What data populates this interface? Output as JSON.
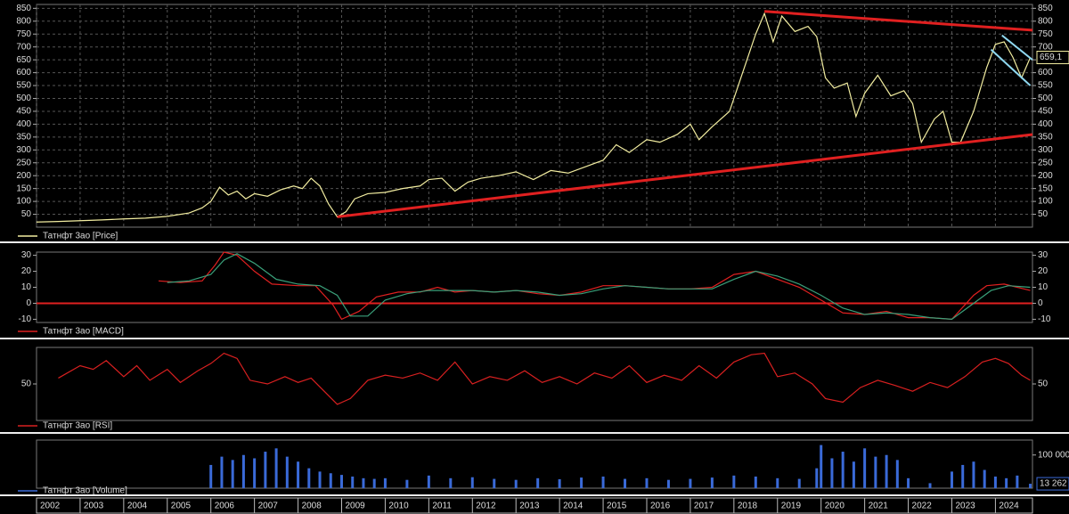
{
  "chart_data": [
    {
      "type": "line",
      "xlim": [
        2002,
        2024.85
      ],
      "ylim": [
        0,
        865
      ],
      "yticks": [
        50,
        100,
        150,
        200,
        250,
        300,
        350,
        400,
        450,
        500,
        550,
        600,
        650,
        700,
        750,
        800,
        850
      ],
      "series": [
        {
          "name": "Татнфт 3ао [Price]",
          "color": "#f2eda0",
          "x": [
            2002.0,
            2002.5,
            2003.0,
            2003.5,
            2004.0,
            2004.5,
            2005.0,
            2005.5,
            2005.8,
            2006.0,
            2006.2,
            2006.4,
            2006.6,
            2006.8,
            2007.0,
            2007.3,
            2007.6,
            2007.9,
            2008.1,
            2008.3,
            2008.5,
            2008.7,
            2008.9,
            2009.1,
            2009.3,
            2009.6,
            2010.0,
            2010.4,
            2010.8,
            2011.0,
            2011.3,
            2011.6,
            2011.9,
            2012.2,
            2012.6,
            2013.0,
            2013.4,
            2013.8,
            2014.2,
            2014.6,
            2015.0,
            2015.3,
            2015.6,
            2016.0,
            2016.3,
            2016.7,
            2017.0,
            2017.2,
            2017.5,
            2017.9,
            2018.2,
            2018.5,
            2018.7,
            2018.9,
            2019.1,
            2019.4,
            2019.7,
            2019.9,
            2020.1,
            2020.3,
            2020.6,
            2020.8,
            2021.0,
            2021.3,
            2021.6,
            2021.9,
            2022.1,
            2022.3,
            2022.6,
            2022.8,
            2023.0,
            2023.2,
            2023.5,
            2023.8,
            2024.0,
            2024.2,
            2024.4,
            2024.6,
            2024.8
          ],
          "values": [
            20,
            22,
            25,
            28,
            32,
            35,
            42,
            55,
            75,
            100,
            155,
            125,
            140,
            110,
            130,
            120,
            145,
            160,
            150,
            190,
            160,
            90,
            40,
            60,
            110,
            130,
            135,
            150,
            160,
            185,
            190,
            140,
            175,
            190,
            200,
            215,
            185,
            220,
            210,
            235,
            260,
            320,
            290,
            340,
            330,
            360,
            400,
            340,
            390,
            450,
            600,
            750,
            830,
            720,
            820,
            760,
            780,
            740,
            580,
            540,
            560,
            430,
            520,
            590,
            510,
            530,
            480,
            330,
            420,
            450,
            330,
            330,
            450,
            620,
            710,
            720,
            660,
            580,
            659.1
          ]
        }
      ],
      "last_value": {
        "x": 2024.8,
        "value": 659.1,
        "label": "659,1"
      },
      "lines": [
        {
          "color": "#e02020",
          "x": [
            2008.9,
            2024.85
          ],
          "y": [
            40,
            360
          ]
        },
        {
          "color": "#e02020",
          "x": [
            2018.7,
            2024.85
          ],
          "y": [
            838,
            765
          ]
        },
        {
          "color": "#8fd8f0",
          "x": [
            2024.15,
            2024.85
          ],
          "y": [
            745,
            650
          ]
        },
        {
          "color": "#8fd8f0",
          "x": [
            2023.9,
            2024.8
          ],
          "y": [
            690,
            550
          ]
        }
      ]
    },
    {
      "type": "line",
      "xlim": [
        2002,
        2024.85
      ],
      "ylim": [
        -12,
        32
      ],
      "yticks": [
        -10,
        0,
        10,
        20,
        30
      ],
      "zero_line_color": "#e02020",
      "series": [
        {
          "name": "Татнфт 3ао [MACD]",
          "color": "#e02020",
          "x": [
            2004.8,
            2005.3,
            2005.8,
            2006.1,
            2006.3,
            2006.6,
            2007.0,
            2007.4,
            2008.0,
            2008.4,
            2008.8,
            2009.0,
            2009.4,
            2009.8,
            2010.3,
            2010.8,
            2011.2,
            2011.6,
            2012.0,
            2012.5,
            2013.0,
            2013.5,
            2014.0,
            2014.5,
            2015.0,
            2015.5,
            2016.0,
            2016.5,
            2017.0,
            2017.5,
            2018.0,
            2018.5,
            2019.0,
            2019.5,
            2020.0,
            2020.5,
            2021.0,
            2021.5,
            2022.0,
            2022.5,
            2023.0,
            2023.5,
            2023.8,
            2024.2,
            2024.5,
            2024.8
          ],
          "values": [
            14,
            13,
            14,
            24,
            32,
            30,
            20,
            12,
            11,
            11,
            -1,
            -10,
            -5,
            4,
            7,
            7,
            10,
            7,
            8,
            7,
            8,
            6,
            5,
            7,
            11,
            11,
            10,
            9,
            9,
            10,
            18,
            20,
            15,
            10,
            2,
            -6,
            -7,
            -5,
            -9,
            -9,
            -10,
            5,
            11,
            12,
            10,
            8
          ]
        },
        {
          "name": null,
          "color": "#3aa07a",
          "x": [
            2005.0,
            2005.5,
            2006.0,
            2006.3,
            2006.6,
            2007.0,
            2007.5,
            2008.0,
            2008.5,
            2008.9,
            2009.2,
            2009.6,
            2010.0,
            2010.5,
            2011.0,
            2011.5,
            2012.0,
            2012.5,
            2013.0,
            2013.5,
            2014.0,
            2014.5,
            2015.0,
            2015.5,
            2016.0,
            2016.5,
            2017.0,
            2017.5,
            2018.0,
            2018.5,
            2019.0,
            2019.5,
            2020.0,
            2020.5,
            2021.0,
            2021.5,
            2022.0,
            2022.5,
            2023.0,
            2023.5,
            2023.9,
            2024.3,
            2024.8
          ],
          "values": [
            13,
            14,
            18,
            27,
            31,
            25,
            15,
            12,
            11,
            5,
            -8,
            -8,
            2,
            6,
            8,
            8,
            8,
            7,
            8,
            7,
            5,
            6,
            9,
            11,
            10,
            9,
            9,
            9,
            15,
            20,
            17,
            12,
            5,
            -3,
            -7,
            -6,
            -7,
            -9,
            -10,
            0,
            8,
            11,
            10
          ]
        }
      ]
    },
    {
      "type": "line",
      "xlim": [
        2002,
        2024.85
      ],
      "ylim": [
        0,
        100
      ],
      "yticks": [
        50
      ],
      "series": [
        {
          "name": "Татнфт 3ао [RSI]",
          "color": "#d82020",
          "x": [
            2002.5,
            2003.0,
            2003.3,
            2003.6,
            2004.0,
            2004.3,
            2004.6,
            2005.0,
            2005.3,
            2005.7,
            2006.0,
            2006.3,
            2006.6,
            2006.9,
            2007.3,
            2007.7,
            2008.0,
            2008.3,
            2008.6,
            2008.9,
            2009.2,
            2009.6,
            2010.0,
            2010.4,
            2010.8,
            2011.2,
            2011.6,
            2012.0,
            2012.4,
            2012.8,
            2013.2,
            2013.6,
            2014.0,
            2014.4,
            2014.8,
            2015.2,
            2015.6,
            2016.0,
            2016.4,
            2016.8,
            2017.2,
            2017.6,
            2018.0,
            2018.4,
            2018.7,
            2019.0,
            2019.4,
            2019.8,
            2020.1,
            2020.5,
            2020.9,
            2021.3,
            2021.7,
            2022.1,
            2022.5,
            2022.9,
            2023.3,
            2023.7,
            2024.0,
            2024.3,
            2024.6,
            2024.8
          ],
          "values": [
            58,
            75,
            70,
            82,
            60,
            75,
            55,
            70,
            52,
            68,
            78,
            92,
            85,
            55,
            50,
            60,
            52,
            58,
            40,
            22,
            30,
            55,
            62,
            58,
            65,
            55,
            80,
            50,
            60,
            55,
            68,
            52,
            60,
            50,
            65,
            58,
            75,
            52,
            62,
            55,
            75,
            58,
            80,
            90,
            92,
            60,
            65,
            50,
            30,
            25,
            45,
            55,
            48,
            40,
            52,
            45,
            60,
            80,
            85,
            78,
            62,
            55
          ]
        }
      ]
    },
    {
      "type": "bar",
      "xlim": [
        2002,
        2024.85
      ],
      "ylim": [
        0,
        145000
      ],
      "yticks": [
        {
          "value": 100000,
          "label": "100 000"
        }
      ],
      "xticks": [
        {
          "value": 2002,
          "label": "2002"
        },
        {
          "value": 2003,
          "label": "2003"
        },
        {
          "value": 2004,
          "label": "2004"
        },
        {
          "value": 2005,
          "label": "2005"
        },
        {
          "value": 2006,
          "label": "2006"
        },
        {
          "value": 2007,
          "label": "2007"
        },
        {
          "value": 2008,
          "label": "2008"
        },
        {
          "value": 2009,
          "label": "2009"
        },
        {
          "value": 2010,
          "label": "2010"
        },
        {
          "value": 2011,
          "label": "2011"
        },
        {
          "value": 2012,
          "label": "2012"
        },
        {
          "value": 2013,
          "label": "2013"
        },
        {
          "value": 2014,
          "label": "2014"
        },
        {
          "value": 2015,
          "label": "2015"
        },
        {
          "value": 2016,
          "label": "2016"
        },
        {
          "value": 2017,
          "label": "2017"
        },
        {
          "value": 2018,
          "label": "2018"
        },
        {
          "value": 2019,
          "label": "2019"
        },
        {
          "value": 2020,
          "label": "2020"
        },
        {
          "value": 2021,
          "label": "2021"
        },
        {
          "value": 2022,
          "label": "2022"
        },
        {
          "value": 2023,
          "label": "2023"
        },
        {
          "value": 2024,
          "label": "2024"
        }
      ],
      "series": [
        {
          "name": "Татнфт 3ао [Volume]",
          "color": "#3a6ad8",
          "x": [
            2006.0,
            2006.25,
            2006.5,
            2006.75,
            2007.0,
            2007.25,
            2007.5,
            2007.75,
            2008.0,
            2008.25,
            2008.5,
            2008.75,
            2009.0,
            2009.25,
            2009.5,
            2009.75,
            2010.0,
            2010.5,
            2011.0,
            2011.5,
            2012.0,
            2012.5,
            2013.0,
            2013.5,
            2014.0,
            2014.5,
            2015.0,
            2015.5,
            2016.0,
            2016.5,
            2017.0,
            2017.5,
            2018.0,
            2018.5,
            2019.0,
            2019.5,
            2019.9,
            2020.0,
            2020.25,
            2020.5,
            2020.75,
            2021.0,
            2021.25,
            2021.5,
            2021.75,
            2022.0,
            2022.5,
            2023.0,
            2023.25,
            2023.5,
            2023.75,
            2024.0,
            2024.25,
            2024.5,
            2024.8
          ],
          "values": [
            70000,
            95000,
            85000,
            100000,
            90000,
            110000,
            120000,
            95000,
            80000,
            60000,
            50000,
            45000,
            40000,
            35000,
            30000,
            28000,
            30000,
            25000,
            38000,
            30000,
            33000,
            28000,
            25000,
            30000,
            27000,
            32000,
            35000,
            28000,
            30000,
            25000,
            28000,
            32000,
            38000,
            35000,
            30000,
            28000,
            60000,
            130000,
            90000,
            110000,
            80000,
            120000,
            95000,
            100000,
            85000,
            30000,
            15000,
            50000,
            70000,
            80000,
            55000,
            35000,
            30000,
            38000,
            13262
          ]
        }
      ],
      "last_value": {
        "x": 2024.8,
        "value": 13262,
        "label": "13 262"
      }
    }
  ]
}
